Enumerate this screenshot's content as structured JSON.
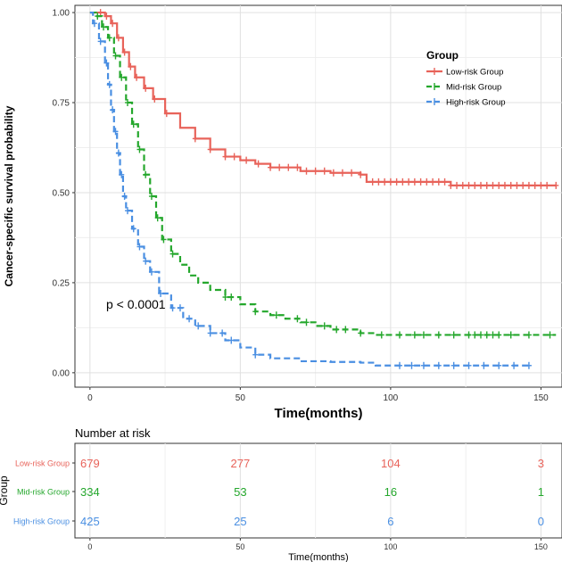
{
  "chart_data": [
    {
      "type": "line",
      "subtype": "kaplan-meier",
      "title": "",
      "xlabel": "Time(months)",
      "ylabel": "Cancer-specific survival probability",
      "xlim": [
        -5,
        157
      ],
      "ylim": [
        -0.04,
        1.02
      ],
      "xticks": [
        0,
        50,
        100,
        150
      ],
      "yticks": [
        0.0,
        0.25,
        0.5,
        0.75,
        1.0
      ],
      "ytick_labels": [
        "0.00",
        "0.25",
        "0.50",
        "0.75",
        "1.00"
      ],
      "grid": true,
      "annotation": "p < 0.0001",
      "legend": {
        "title": "Group",
        "position": "top-right",
        "entries": [
          "Low-risk Group",
          "Mid-risk Group",
          "High-risk Group"
        ]
      },
      "series": [
        {
          "name": "Low-risk Group",
          "color": "#e8635a",
          "dash": "solid",
          "points": [
            [
              0,
              1.0
            ],
            [
              3,
              1.0
            ],
            [
              5,
              0.99
            ],
            [
              7,
              0.97
            ],
            [
              9,
              0.93
            ],
            [
              11,
              0.89
            ],
            [
              13,
              0.85
            ],
            [
              15,
              0.82
            ],
            [
              18,
              0.79
            ],
            [
              21,
              0.76
            ],
            [
              25,
              0.72
            ],
            [
              30,
              0.68
            ],
            [
              35,
              0.65
            ],
            [
              40,
              0.62
            ],
            [
              45,
              0.6
            ],
            [
              50,
              0.59
            ],
            [
              55,
              0.58
            ],
            [
              60,
              0.57
            ],
            [
              70,
              0.56
            ],
            [
              80,
              0.555
            ],
            [
              90,
              0.55
            ],
            [
              92,
              0.53
            ],
            [
              100,
              0.53
            ],
            [
              118,
              0.53
            ],
            [
              120,
              0.52
            ],
            [
              155,
              0.52
            ]
          ],
          "censor_x": [
            35,
            40,
            45,
            48,
            52,
            56,
            60,
            63,
            66,
            69,
            72,
            75,
            78,
            81,
            84,
            87,
            90,
            94,
            96,
            98,
            100,
            102,
            104,
            106,
            108,
            110,
            112,
            114,
            116,
            118,
            120,
            122,
            124,
            126,
            128,
            130,
            132,
            134,
            136,
            138,
            140,
            142,
            144,
            146,
            148,
            150,
            152,
            155
          ]
        },
        {
          "name": "Mid-risk Group",
          "color": "#24a72c",
          "dash": "dash",
          "points": [
            [
              0,
              1.0
            ],
            [
              2,
              0.99
            ],
            [
              4,
              0.96
            ],
            [
              6,
              0.93
            ],
            [
              8,
              0.88
            ],
            [
              10,
              0.82
            ],
            [
              12,
              0.75
            ],
            [
              14,
              0.69
            ],
            [
              16,
              0.62
            ],
            [
              18,
              0.55
            ],
            [
              20,
              0.49
            ],
            [
              22,
              0.43
            ],
            [
              24,
              0.37
            ],
            [
              27,
              0.33
            ],
            [
              30,
              0.3
            ],
            [
              33,
              0.27
            ],
            [
              36,
              0.25
            ],
            [
              40,
              0.23
            ],
            [
              45,
              0.21
            ],
            [
              50,
              0.19
            ],
            [
              55,
              0.17
            ],
            [
              60,
              0.16
            ],
            [
              65,
              0.15
            ],
            [
              70,
              0.14
            ],
            [
              75,
              0.13
            ],
            [
              80,
              0.12
            ],
            [
              90,
              0.11
            ],
            [
              95,
              0.105
            ],
            [
              155,
              0.105
            ]
          ],
          "censor_x": [
            45,
            47,
            55,
            62,
            69,
            72,
            78,
            82,
            85,
            90,
            97,
            103,
            108,
            111,
            116,
            121,
            126,
            128,
            130,
            132,
            134,
            136,
            140,
            146,
            153
          ]
        },
        {
          "name": "High-risk Group",
          "color": "#4a8fe2",
          "dash": "dash",
          "points": [
            [
              0,
              1.0
            ],
            [
              1,
              0.97
            ],
            [
              3,
              0.92
            ],
            [
              5,
              0.86
            ],
            [
              6,
              0.8
            ],
            [
              7,
              0.73
            ],
            [
              8,
              0.67
            ],
            [
              9,
              0.61
            ],
            [
              10,
              0.55
            ],
            [
              11,
              0.49
            ],
            [
              12,
              0.45
            ],
            [
              14,
              0.4
            ],
            [
              16,
              0.35
            ],
            [
              18,
              0.31
            ],
            [
              20,
              0.28
            ],
            [
              23,
              0.22
            ],
            [
              27,
              0.18
            ],
            [
              31,
              0.15
            ],
            [
              35,
              0.13
            ],
            [
              40,
              0.11
            ],
            [
              45,
              0.09
            ],
            [
              50,
              0.07
            ],
            [
              55,
              0.05
            ],
            [
              60,
              0.04
            ],
            [
              70,
              0.032
            ],
            [
              80,
              0.03
            ],
            [
              90,
              0.028
            ],
            [
              95,
              0.02
            ],
            [
              146,
              0.02
            ]
          ],
          "censor_x": [
            30,
            33,
            36,
            40,
            44,
            47,
            55,
            103,
            107,
            111,
            116,
            121,
            126,
            131,
            136,
            141,
            146
          ]
        }
      ]
    },
    {
      "type": "table",
      "title": "Number at risk",
      "ylabel": "Group",
      "xlabel": "Time(months)",
      "xticks": [
        0,
        50,
        100,
        150
      ],
      "rows": [
        {
          "name": "Low-risk  Group",
          "color": "#e8635a",
          "values": [
            "679",
            "277",
            "104",
            "3"
          ]
        },
        {
          "name": "Mid-risk  Group",
          "color": "#24a72c",
          "values": [
            "334",
            "53",
            "16",
            "1"
          ]
        },
        {
          "name": "High-risk  Group",
          "color": "#4a8fe2",
          "values": [
            "425",
            "25",
            "6",
            "0"
          ]
        }
      ]
    }
  ]
}
